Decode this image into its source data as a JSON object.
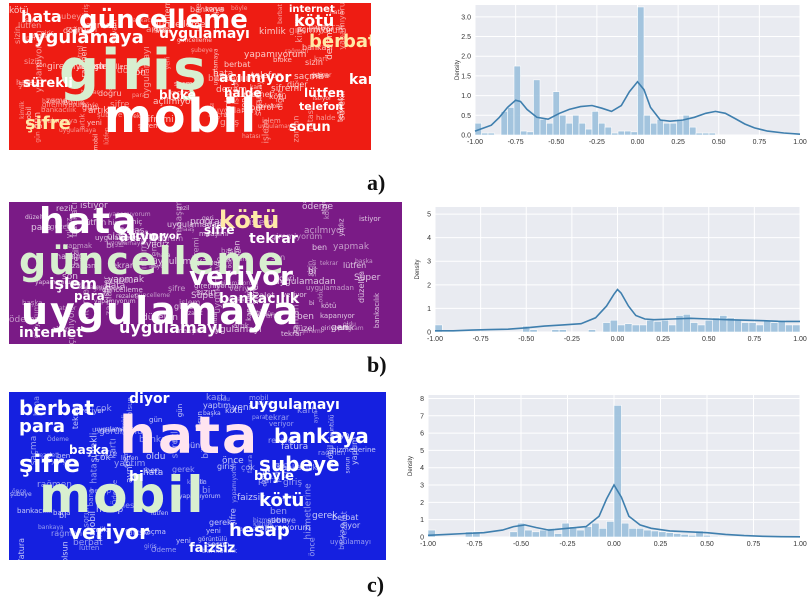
{
  "labels": [
    "a)",
    "b)",
    "c)"
  ],
  "axis": {
    "ylabel": "Density"
  },
  "colors": {
    "cloud_a": "#ee1c13",
    "cloud_b": "#7a1b86",
    "cloud_c": "#1520e0",
    "bar_fill": "#9cc0dc",
    "bar_stroke": "#ffffff",
    "kde": "#3f7fae",
    "plot_bg": "#e9ebf1"
  },
  "wordclouds": [
    {
      "words": [
        "giriş",
        "mobil",
        "güncelleme",
        "uygulamayı",
        "uygulamaya",
        "hata",
        "internet",
        "berbat",
        "kötü",
        "şifre",
        "sürekli",
        "lütfen",
        "telefon",
        "sorun",
        "kart",
        "para",
        "açılmıyor",
        "son",
        "halde",
        "bankası",
        "kimlik",
        "saçma",
        "giremiyorum",
        "bankaya",
        "diğer",
        "zaman",
        "şubeye",
        "bloke",
        "istiyor",
        "yapamıyorum",
        "tekrar",
        "rağmen",
        "kontrol",
        "şifremi",
        "işlem",
        "hatası",
        "böyle",
        "yeni",
        "artık",
        "doğru",
        "gün",
        "bankacılık",
        "sizin",
        "devam"
      ]
    },
    {
      "words": [
        "hata",
        "kötü",
        "güncelleme",
        "uygulamaya",
        "veriyor",
        "işlem",
        "tekrar",
        "atıyor",
        "şifre",
        "bankacılık",
        "uygulamayı",
        "internet",
        "para",
        "açılmıyor",
        "giremiyorum",
        "zaman",
        "son",
        "başka",
        "lütfen",
        "artık",
        "rezil",
        "ben",
        "oldu",
        "yapamıyorum",
        "program",
        "kapanıyor",
        "Süper",
        "düzeltin",
        "maaş",
        "geri",
        "giriyorum",
        "istiyor",
        "gündür",
        "ödeme",
        "uygulamadan",
        "sizin",
        "maaşımı",
        "rezalet",
        "yapmak",
        "yıldız",
        "bi",
        "güzel",
        "şifremi",
        "hiç"
      ]
    },
    {
      "words": [
        "hata",
        "mobil",
        "berbat",
        "para",
        "şifre",
        "diyor",
        "uygulamayı",
        "hesap",
        "veriyor",
        "şubeye",
        "bi",
        "kötü",
        "bankaya",
        "giriş",
        "faizsiz",
        "sorun",
        "böyle",
        "başka",
        "kartı",
        "sürekli",
        "bankacılık",
        "tekrar",
        "ben",
        "son",
        "oldu",
        "yeni",
        "rağmen",
        "saçma",
        "hizmetlerine",
        "kimlik",
        "bana",
        "Ödeme",
        "fatura",
        "rezalet",
        "lütfen",
        "gün",
        "çok",
        "aynı",
        "önce",
        "yapamıyorum",
        "görüntülü",
        "olsun",
        "gerek",
        "yaptım"
      ]
    }
  ],
  "chart_data": [
    {
      "type": "bar",
      "ylabel": "Density",
      "xlim": [
        -1.0,
        1.0
      ],
      "ylim": [
        0,
        3.3
      ],
      "xticks": [
        "-1.00",
        "-0.75",
        "-0.50",
        "-0.25",
        "0.00",
        "0.25",
        "0.50",
        "0.75",
        "1.00"
      ],
      "yticks": [
        "0.0",
        "0.5",
        "1.0",
        "1.5",
        "2.0",
        "2.5",
        "3.0"
      ],
      "bin_start": -1.0,
      "bin_width": 0.04,
      "hist": [
        0.3,
        0.05,
        0.05,
        0.0,
        0.6,
        0.7,
        1.75,
        0.1,
        0.08,
        1.4,
        0.4,
        0.3,
        1.1,
        0.5,
        0.3,
        0.5,
        0.3,
        0.15,
        0.6,
        0.3,
        0.2,
        0.05,
        0.1,
        0.1,
        0.08,
        3.25,
        0.5,
        0.3,
        0.4,
        0.3,
        0.3,
        0.4,
        0.5,
        0.2,
        0.05,
        0.05,
        0.05,
        0.0,
        0.0,
        0.0
      ],
      "kde_x": [
        -1.0,
        -0.9,
        -0.85,
        -0.8,
        -0.75,
        -0.72,
        -0.68,
        -0.62,
        -0.55,
        -0.48,
        -0.42,
        -0.35,
        -0.28,
        -0.22,
        -0.16,
        -0.1,
        -0.05,
        0.0,
        0.04,
        0.08,
        0.14,
        0.2,
        0.28,
        0.35,
        0.42,
        0.48,
        0.54,
        0.6,
        0.66,
        0.72,
        0.8,
        0.9,
        1.0
      ],
      "kde_y": [
        0.1,
        0.25,
        0.45,
        0.7,
        0.88,
        0.85,
        0.65,
        0.45,
        0.4,
        0.55,
        0.65,
        0.72,
        0.75,
        0.68,
        0.6,
        0.75,
        1.1,
        1.35,
        1.15,
        0.7,
        0.38,
        0.35,
        0.38,
        0.45,
        0.55,
        0.6,
        0.55,
        0.42,
        0.28,
        0.18,
        0.1,
        0.05,
        0.02
      ]
    },
    {
      "type": "bar",
      "ylabel": "Density",
      "xlim": [
        -1.0,
        1.0
      ],
      "ylim": [
        0,
        5.3
      ],
      "xticks": [
        "-1.00",
        "-0.75",
        "-0.50",
        "-0.25",
        "0.00",
        "0.25",
        "0.50",
        "0.75",
        "1.00"
      ],
      "yticks": [
        "0",
        "1",
        "2",
        "3",
        "4",
        "5"
      ],
      "bin_start": -1.0,
      "bin_width": 0.04,
      "hist": [
        0.3,
        0.0,
        0.0,
        0.0,
        0.0,
        0.0,
        0.0,
        0.0,
        0.0,
        0.0,
        0.0,
        0.0,
        0.25,
        0.1,
        0.0,
        0.0,
        0.1,
        0.1,
        0.0,
        0.0,
        0.0,
        0.1,
        0.0,
        0.4,
        0.5,
        0.3,
        0.35,
        0.3,
        0.3,
        0.5,
        0.45,
        0.5,
        0.3,
        0.7,
        0.75,
        0.4,
        0.3,
        0.5,
        0.6,
        0.7,
        0.6,
        0.5,
        0.4,
        0.4,
        0.3,
        0.5,
        0.4,
        0.5,
        0.3,
        0.3
      ],
      "kde_x": [
        -1.0,
        -0.9,
        -0.8,
        -0.7,
        -0.6,
        -0.5,
        -0.4,
        -0.3,
        -0.2,
        -0.12,
        -0.06,
        -0.02,
        0.0,
        0.02,
        0.06,
        0.1,
        0.15,
        0.2,
        0.3,
        0.4,
        0.5,
        0.6,
        0.7,
        0.8,
        0.9,
        1.0
      ],
      "kde_y": [
        0.05,
        0.05,
        0.08,
        0.1,
        0.12,
        0.18,
        0.25,
        0.3,
        0.35,
        0.6,
        1.1,
        1.6,
        1.8,
        1.65,
        1.1,
        0.7,
        0.55,
        0.52,
        0.55,
        0.58,
        0.55,
        0.52,
        0.5,
        0.48,
        0.45,
        0.45
      ]
    },
    {
      "type": "bar",
      "ylabel": "Density",
      "xlim": [
        -1.0,
        1.0
      ],
      "ylim": [
        0,
        8.2
      ],
      "xticks": [
        "-1.00",
        "-0.75",
        "-0.50",
        "-0.25",
        "0.00",
        "0.25",
        "0.50",
        "0.75",
        "1.00"
      ],
      "yticks": [
        "0",
        "1",
        "2",
        "3",
        "4",
        "5",
        "6",
        "7",
        "8"
      ],
      "bin_start": -1.0,
      "bin_width": 0.04,
      "hist": [
        0.4,
        0.0,
        0.0,
        0.0,
        0.0,
        0.3,
        0.3,
        0.0,
        0.0,
        0.0,
        0.0,
        0.3,
        0.8,
        0.4,
        0.3,
        0.4,
        0.5,
        0.2,
        0.8,
        0.6,
        0.4,
        0.6,
        0.8,
        0.5,
        0.9,
        7.6,
        0.8,
        0.5,
        0.5,
        0.4,
        0.35,
        0.3,
        0.25,
        0.2,
        0.15,
        0.1,
        0.35,
        0.1,
        0.05,
        0.0,
        0.0,
        0.0,
        0.0,
        0.0,
        0.0,
        0.0,
        0.0,
        0.0,
        0.0,
        0.0
      ],
      "kde_x": [
        -1.0,
        -0.9,
        -0.8,
        -0.7,
        -0.6,
        -0.54,
        -0.48,
        -0.42,
        -0.35,
        -0.25,
        -0.15,
        -0.08,
        -0.04,
        0.0,
        0.04,
        0.08,
        0.14,
        0.2,
        0.3,
        0.4,
        0.5,
        0.6,
        0.7,
        0.8,
        0.9,
        1.0
      ],
      "kde_y": [
        0.1,
        0.15,
        0.2,
        0.25,
        0.4,
        0.6,
        0.7,
        0.55,
        0.4,
        0.5,
        0.6,
        1.2,
        2.2,
        3.0,
        2.3,
        1.2,
        0.7,
        0.5,
        0.35,
        0.3,
        0.25,
        0.15,
        0.08,
        0.04,
        0.02,
        0.01
      ]
    }
  ]
}
